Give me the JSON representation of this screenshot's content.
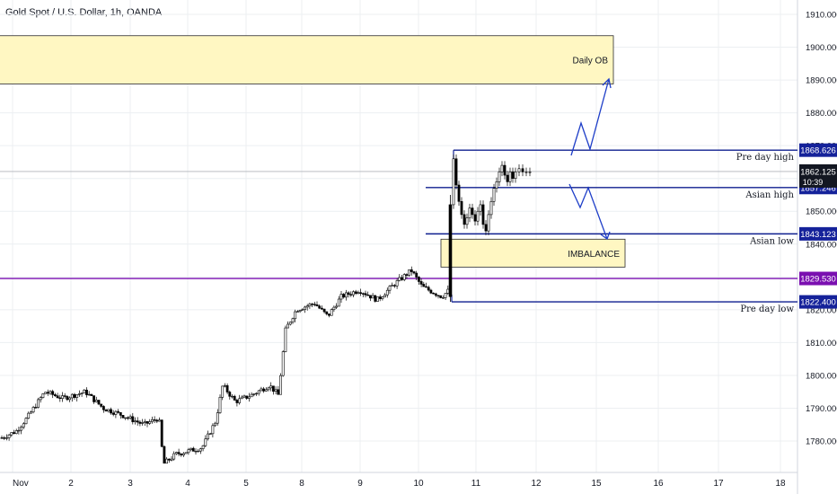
{
  "header": {
    "title": "Gold Spot / U.S. Dollar, 1h, OANDA"
  },
  "colors": {
    "grid": "#eceff2",
    "axis_text": "#131722",
    "level_line": "#0f1f8f",
    "level_badge": "#15229a",
    "support_line": "#7a0fb0",
    "support_badge": "#7a0fb0",
    "zone_fill": "#fff7c2",
    "zone_border": "#2b2b2b",
    "projection": "#1e3ec8",
    "candle": "#000000",
    "current_price_badge": "#131722"
  },
  "price_axis": {
    "ticks": [
      "1910.000",
      "1900.000",
      "1890.000",
      "1880.000",
      "1870.000",
      "1860.000",
      "1850.000",
      "1840.000",
      "1830.000",
      "1820.000",
      "1810.000",
      "1800.000",
      "1790.000",
      "1780.000"
    ],
    "current_price": "1862.125",
    "countdown": "10:39"
  },
  "time_axis": {
    "ticks": [
      "Nov",
      "2",
      "3",
      "4",
      "5",
      "8",
      "9",
      "10",
      "11",
      "12",
      "15",
      "16",
      "17",
      "18"
    ]
  },
  "levels": [
    {
      "label": "Pre day high",
      "price": 1868.626,
      "badge": "1868.626"
    },
    {
      "label": "Asian high",
      "price": 1857.246,
      "badge": "1857.246"
    },
    {
      "label": "Asian low",
      "price": 1843.123,
      "badge": "1843.123"
    },
    {
      "label": "Pre day low",
      "price": 1822.4,
      "badge": "1822.400"
    }
  ],
  "support": {
    "price": 1829.53,
    "badge": "1829.530"
  },
  "zones": [
    {
      "label": "Daily OB",
      "price_high": 1903.5,
      "price_low": 1888.8
    },
    {
      "label": "IMBALANCE",
      "price_high": 1841.5,
      "price_low": 1833.0
    }
  ],
  "chart_data": {
    "type": "candlestick",
    "title": "Gold Spot / U.S. Dollar, 1h, OANDA",
    "x_dates": [
      "Nov",
      "2",
      "3",
      "4",
      "5",
      "8",
      "9",
      "10",
      "11",
      "12",
      "15",
      "16",
      "17",
      "18"
    ],
    "y_range": [
      1773.5,
      1913.5
    ],
    "close_path_approx": [
      {
        "date": "Nov",
        "price": 1783
      },
      {
        "date": "2",
        "price": 1794
      },
      {
        "date": "3",
        "price": 1788
      },
      {
        "date": "4",
        "price": 1776
      },
      {
        "date": "5",
        "price": 1795
      },
      {
        "date": "8",
        "price": 1820
      },
      {
        "date": "9",
        "price": 1825
      },
      {
        "date": "10",
        "price": 1831
      },
      {
        "date": "10",
        "price": 1824
      },
      {
        "date": "11",
        "price": 1846
      },
      {
        "date": "11",
        "price": 1862
      }
    ]
  }
}
